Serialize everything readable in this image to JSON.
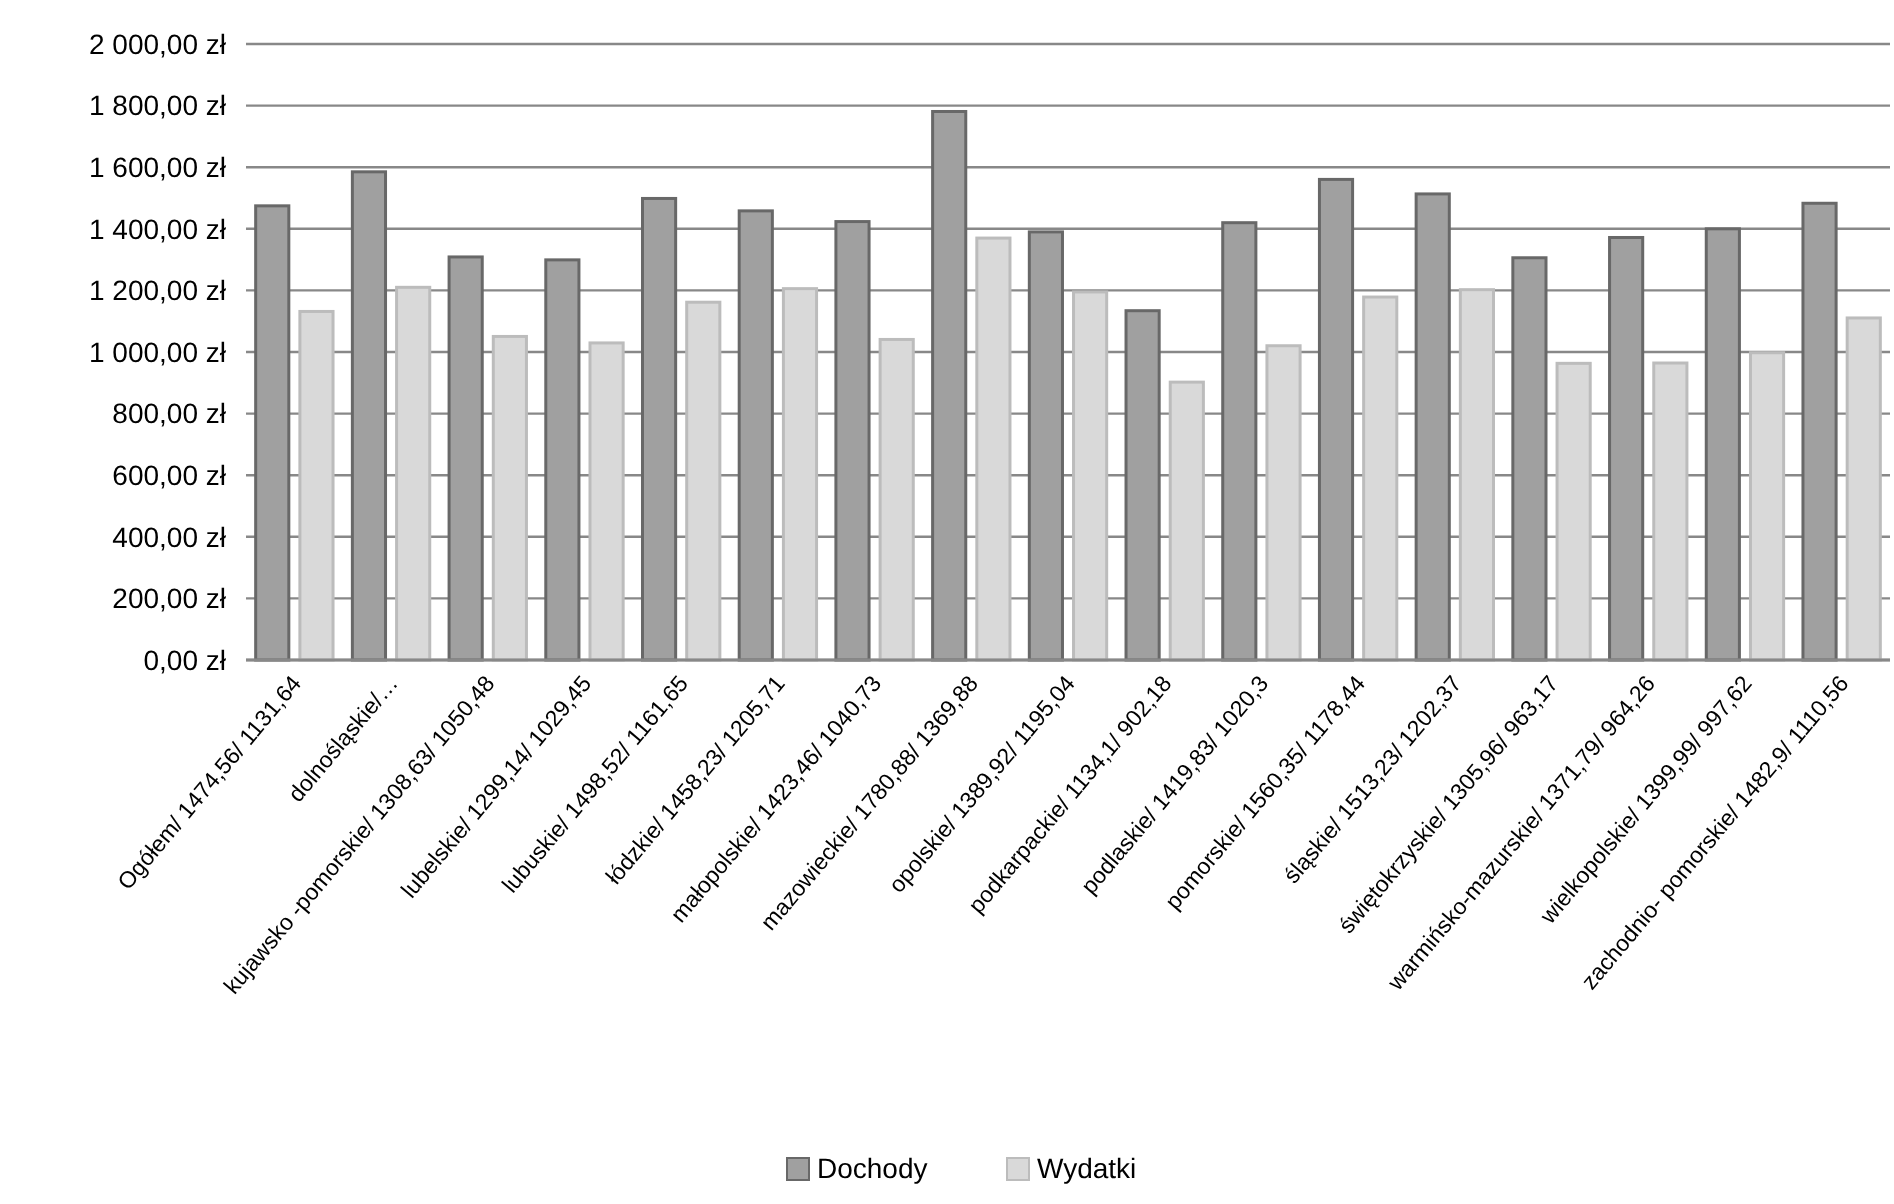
{
  "chart_data": {
    "type": "bar",
    "categories": [
      "Ogółem/ 1474,56/ 1131,64",
      "dolnośląskie/…",
      "kujawsko -pomorskie/ 1308,63/ 1050,48",
      "lubelskie/ 1299,14/ 1029,45",
      "lubuskie/ 1498,52/ 1161,65",
      "łódzkie/ 1458,23/ 1205,71",
      "małopolskie/ 1423,46/ 1040,73",
      "mazowieckie/ 1780,88/ 1369,88",
      "opolskie/ 1389,92/ 1195,04",
      "podkarpackie/ 1134,1/ 902,18",
      "podlaskie/ 1419,83/ 1020,3",
      "pomorskie/ 1560,35/ 1178,44",
      "śląskie/ 1513,23/ 1202,37",
      "świętokrzyskie/ 1305,96/ 963,17",
      "warmińsko-mazurskie/ 1371,79/ 964,26",
      "wielkopolskie/ 1399,99/ 997,62",
      "zachodnio- pomorskie/ 1482,9/ 1110,56"
    ],
    "series": [
      {
        "name": "Dochody",
        "color": "#a0a0a0",
        "values": [
          1474.56,
          1585,
          1308.63,
          1299.14,
          1498.52,
          1458.23,
          1423.46,
          1780.88,
          1389.92,
          1134.1,
          1419.83,
          1560.35,
          1513.23,
          1305.96,
          1371.79,
          1399.99,
          1482.9
        ]
      },
      {
        "name": "Wydatki",
        "color": "#d9d9d9",
        "values": [
          1131.64,
          1210,
          1050.48,
          1029.45,
          1161.65,
          1205.71,
          1040.73,
          1369.88,
          1195.04,
          902.18,
          1020.3,
          1178.44,
          1202.37,
          963.17,
          964.26,
          997.62,
          1110.56
        ]
      }
    ],
    "ylim": [
      0,
      2000
    ],
    "yticks": [
      {
        "value": 0,
        "label": "0,00 zł"
      },
      {
        "value": 200,
        "label": "200,00 zł"
      },
      {
        "value": 400,
        "label": "400,00 zł"
      },
      {
        "value": 600,
        "label": "600,00 zł"
      },
      {
        "value": 800,
        "label": "800,00 zł"
      },
      {
        "value": 1000,
        "label": "1 000,00 zł"
      },
      {
        "value": 1200,
        "label": "1 200,00 zł"
      },
      {
        "value": 1400,
        "label": "1 400,00 zł"
      },
      {
        "value": 1600,
        "label": "1 600,00 zł"
      },
      {
        "value": 1800,
        "label": "1 800,00 zł"
      },
      {
        "value": 2000,
        "label": "2 000,00 zł"
      }
    ],
    "grid": "y",
    "legend": "bottom"
  }
}
